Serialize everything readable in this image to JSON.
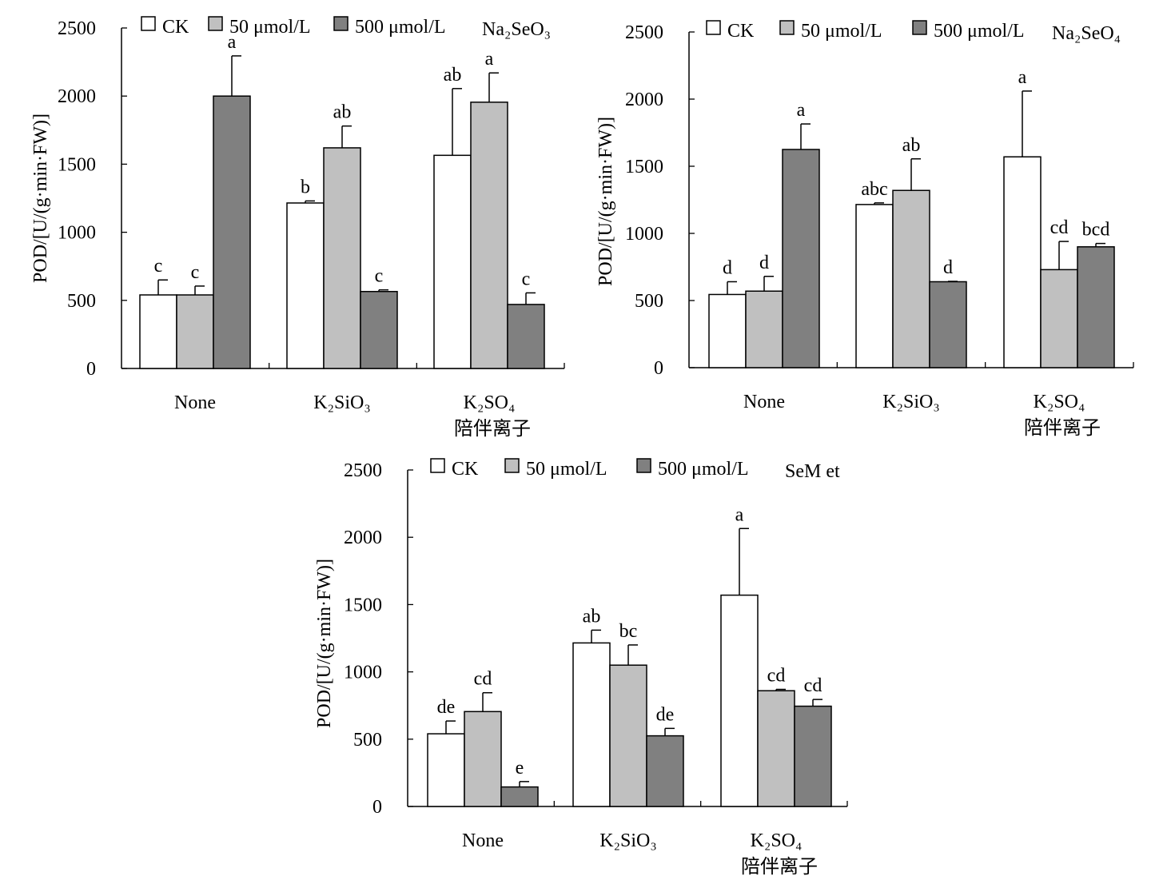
{
  "figure": {
    "legend_labels": [
      "CK",
      "50 μmol/L",
      "500 μmol/L"
    ],
    "colors": {
      "CK": "#ffffff",
      "50 μmol/L": "#c0c0c0",
      "500 μmol/L": "#808080",
      "outline": "#000000"
    }
  },
  "chart_data": [
    {
      "type": "bar",
      "treatment_label": "Na₂SeO₃",
      "ylabel": "POD/[U/(g·min·FW)]",
      "xlabel": "陪伴离子",
      "categories": [
        "None",
        "K₂SiO₃",
        "K₂SO₄"
      ],
      "ylim": [
        0,
        2500
      ],
      "yticks": [
        0,
        500,
        1000,
        1500,
        2000,
        2500
      ],
      "grid": false,
      "legend_position": "top",
      "series": [
        {
          "name": "CK",
          "values": [
            540,
            1215,
            1565
          ],
          "errors": [
            110,
            15,
            490
          ],
          "letters": [
            "c",
            "b",
            "ab"
          ]
        },
        {
          "name": "50 μmol/L",
          "values": [
            540,
            1620,
            1955
          ],
          "errors": [
            65,
            160,
            215
          ],
          "letters": [
            "c",
            "ab",
            "a"
          ]
        },
        {
          "name": "500 μmol/L",
          "values": [
            2000,
            565,
            470
          ],
          "errors": [
            295,
            12,
            85
          ],
          "letters": [
            "a",
            "c",
            "c"
          ]
        }
      ]
    },
    {
      "type": "bar",
      "treatment_label": "Na₂SeO₄",
      "ylabel": "POD/[U/(g·min·FW)]",
      "xlabel": "陪伴离子",
      "categories": [
        "None",
        "K₂SiO₃",
        "K₂SO₄"
      ],
      "ylim": [
        0,
        2500
      ],
      "yticks": [
        0,
        500,
        1000,
        1500,
        2000,
        2500
      ],
      "grid": false,
      "legend_position": "top",
      "series": [
        {
          "name": "CK",
          "values": [
            545,
            1215,
            1570
          ],
          "errors": [
            95,
            12,
            490
          ],
          "letters": [
            "d",
            "abc",
            "a"
          ]
        },
        {
          "name": "50 μmol/L",
          "values": [
            570,
            1320,
            730
          ],
          "errors": [
            110,
            235,
            210
          ],
          "letters": [
            "d",
            "ab",
            "cd"
          ]
        },
        {
          "name": "500 μmol/L",
          "values": [
            1625,
            640,
            900
          ],
          "errors": [
            190,
            3,
            25
          ],
          "letters": [
            "a",
            "d",
            "bcd"
          ]
        }
      ]
    },
    {
      "type": "bar",
      "treatment_label": "SeM et",
      "ylabel": "POD/[U/(g·min·FW)]",
      "xlabel": "陪伴离子",
      "categories": [
        "None",
        "K₂SiO₃",
        "K₂SO₄"
      ],
      "ylim": [
        0,
        2500
      ],
      "yticks": [
        0,
        500,
        1000,
        1500,
        2000,
        2500
      ],
      "grid": false,
      "legend_position": "top",
      "series": [
        {
          "name": "CK",
          "values": [
            540,
            1215,
            1570
          ],
          "errors": [
            95,
            95,
            495
          ],
          "letters": [
            "de",
            "ab",
            "a"
          ]
        },
        {
          "name": "50 μmol/L",
          "values": [
            705,
            1050,
            860
          ],
          "errors": [
            140,
            150,
            10
          ],
          "letters": [
            "cd",
            "bc",
            "cd"
          ]
        },
        {
          "name": "500 μmol/L",
          "values": [
            145,
            525,
            745
          ],
          "errors": [
            40,
            55,
            50
          ],
          "letters": [
            "e",
            "de",
            "cd"
          ]
        }
      ]
    }
  ]
}
